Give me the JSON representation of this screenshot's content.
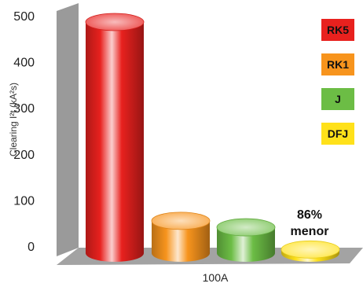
{
  "chart_data": {
    "type": "bar",
    "ylabel": "Clearing I²t (kA²s)",
    "categories": [
      "100A"
    ],
    "ylim": [
      0,
      500
    ],
    "yticks": [
      0,
      100,
      200,
      300,
      400,
      500
    ],
    "series": [
      {
        "name": "RK5",
        "values": [
          500
        ],
        "color": "#e8211e"
      },
      {
        "name": "RK1",
        "values": [
          70
        ],
        "color": "#f7941d"
      },
      {
        "name": "J",
        "values": [
          56
        ],
        "color": "#6cbd45"
      },
      {
        "name": "DFJ",
        "values": [
          8
        ],
        "color": "#ffe11a"
      }
    ],
    "annotation": {
      "line1": "86%",
      "line2": "menor"
    },
    "legend_position": "right"
  }
}
